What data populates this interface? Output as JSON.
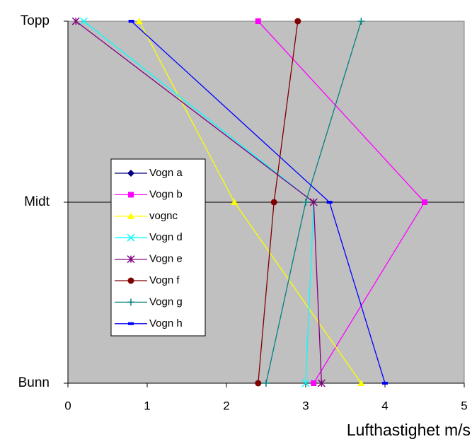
{
  "chart_data": {
    "type": "line",
    "x_label": "Lufthastighet m/s",
    "categories": [
      "Topp",
      "Midt",
      "Bunn"
    ],
    "xlim": [
      0,
      5
    ],
    "xticks": [
      0,
      1,
      2,
      3,
      4,
      5
    ],
    "grid": true,
    "series": [
      {
        "name": "Vogn a",
        "color": "#000080",
        "marker": "diamond",
        "values": [
          null,
          null,
          null
        ]
      },
      {
        "name": "Vogn b",
        "color": "#ff00ff",
        "marker": "square",
        "values": [
          2.4,
          4.5,
          3.1
        ]
      },
      {
        "name": "vognc",
        "color": "#ffff00",
        "marker": "triangle",
        "values": [
          0.9,
          2.1,
          3.7
        ]
      },
      {
        "name": "Vogn d",
        "color": "#00ffff",
        "marker": "x",
        "values": [
          0.2,
          3.1,
          3.0
        ]
      },
      {
        "name": "Vogn e",
        "color": "#800080",
        "marker": "asterisk",
        "values": [
          0.1,
          3.1,
          3.2
        ]
      },
      {
        "name": "Vogn f",
        "color": "#800000",
        "marker": "circle",
        "values": [
          2.9,
          2.6,
          2.4
        ]
      },
      {
        "name": "Vogn g",
        "color": "#008080",
        "marker": "plus",
        "values": [
          3.7,
          3.0,
          2.5
        ]
      },
      {
        "name": "Vogn h",
        "color": "#0000ff",
        "marker": "dash",
        "values": [
          0.8,
          3.3,
          4.0
        ]
      }
    ]
  }
}
